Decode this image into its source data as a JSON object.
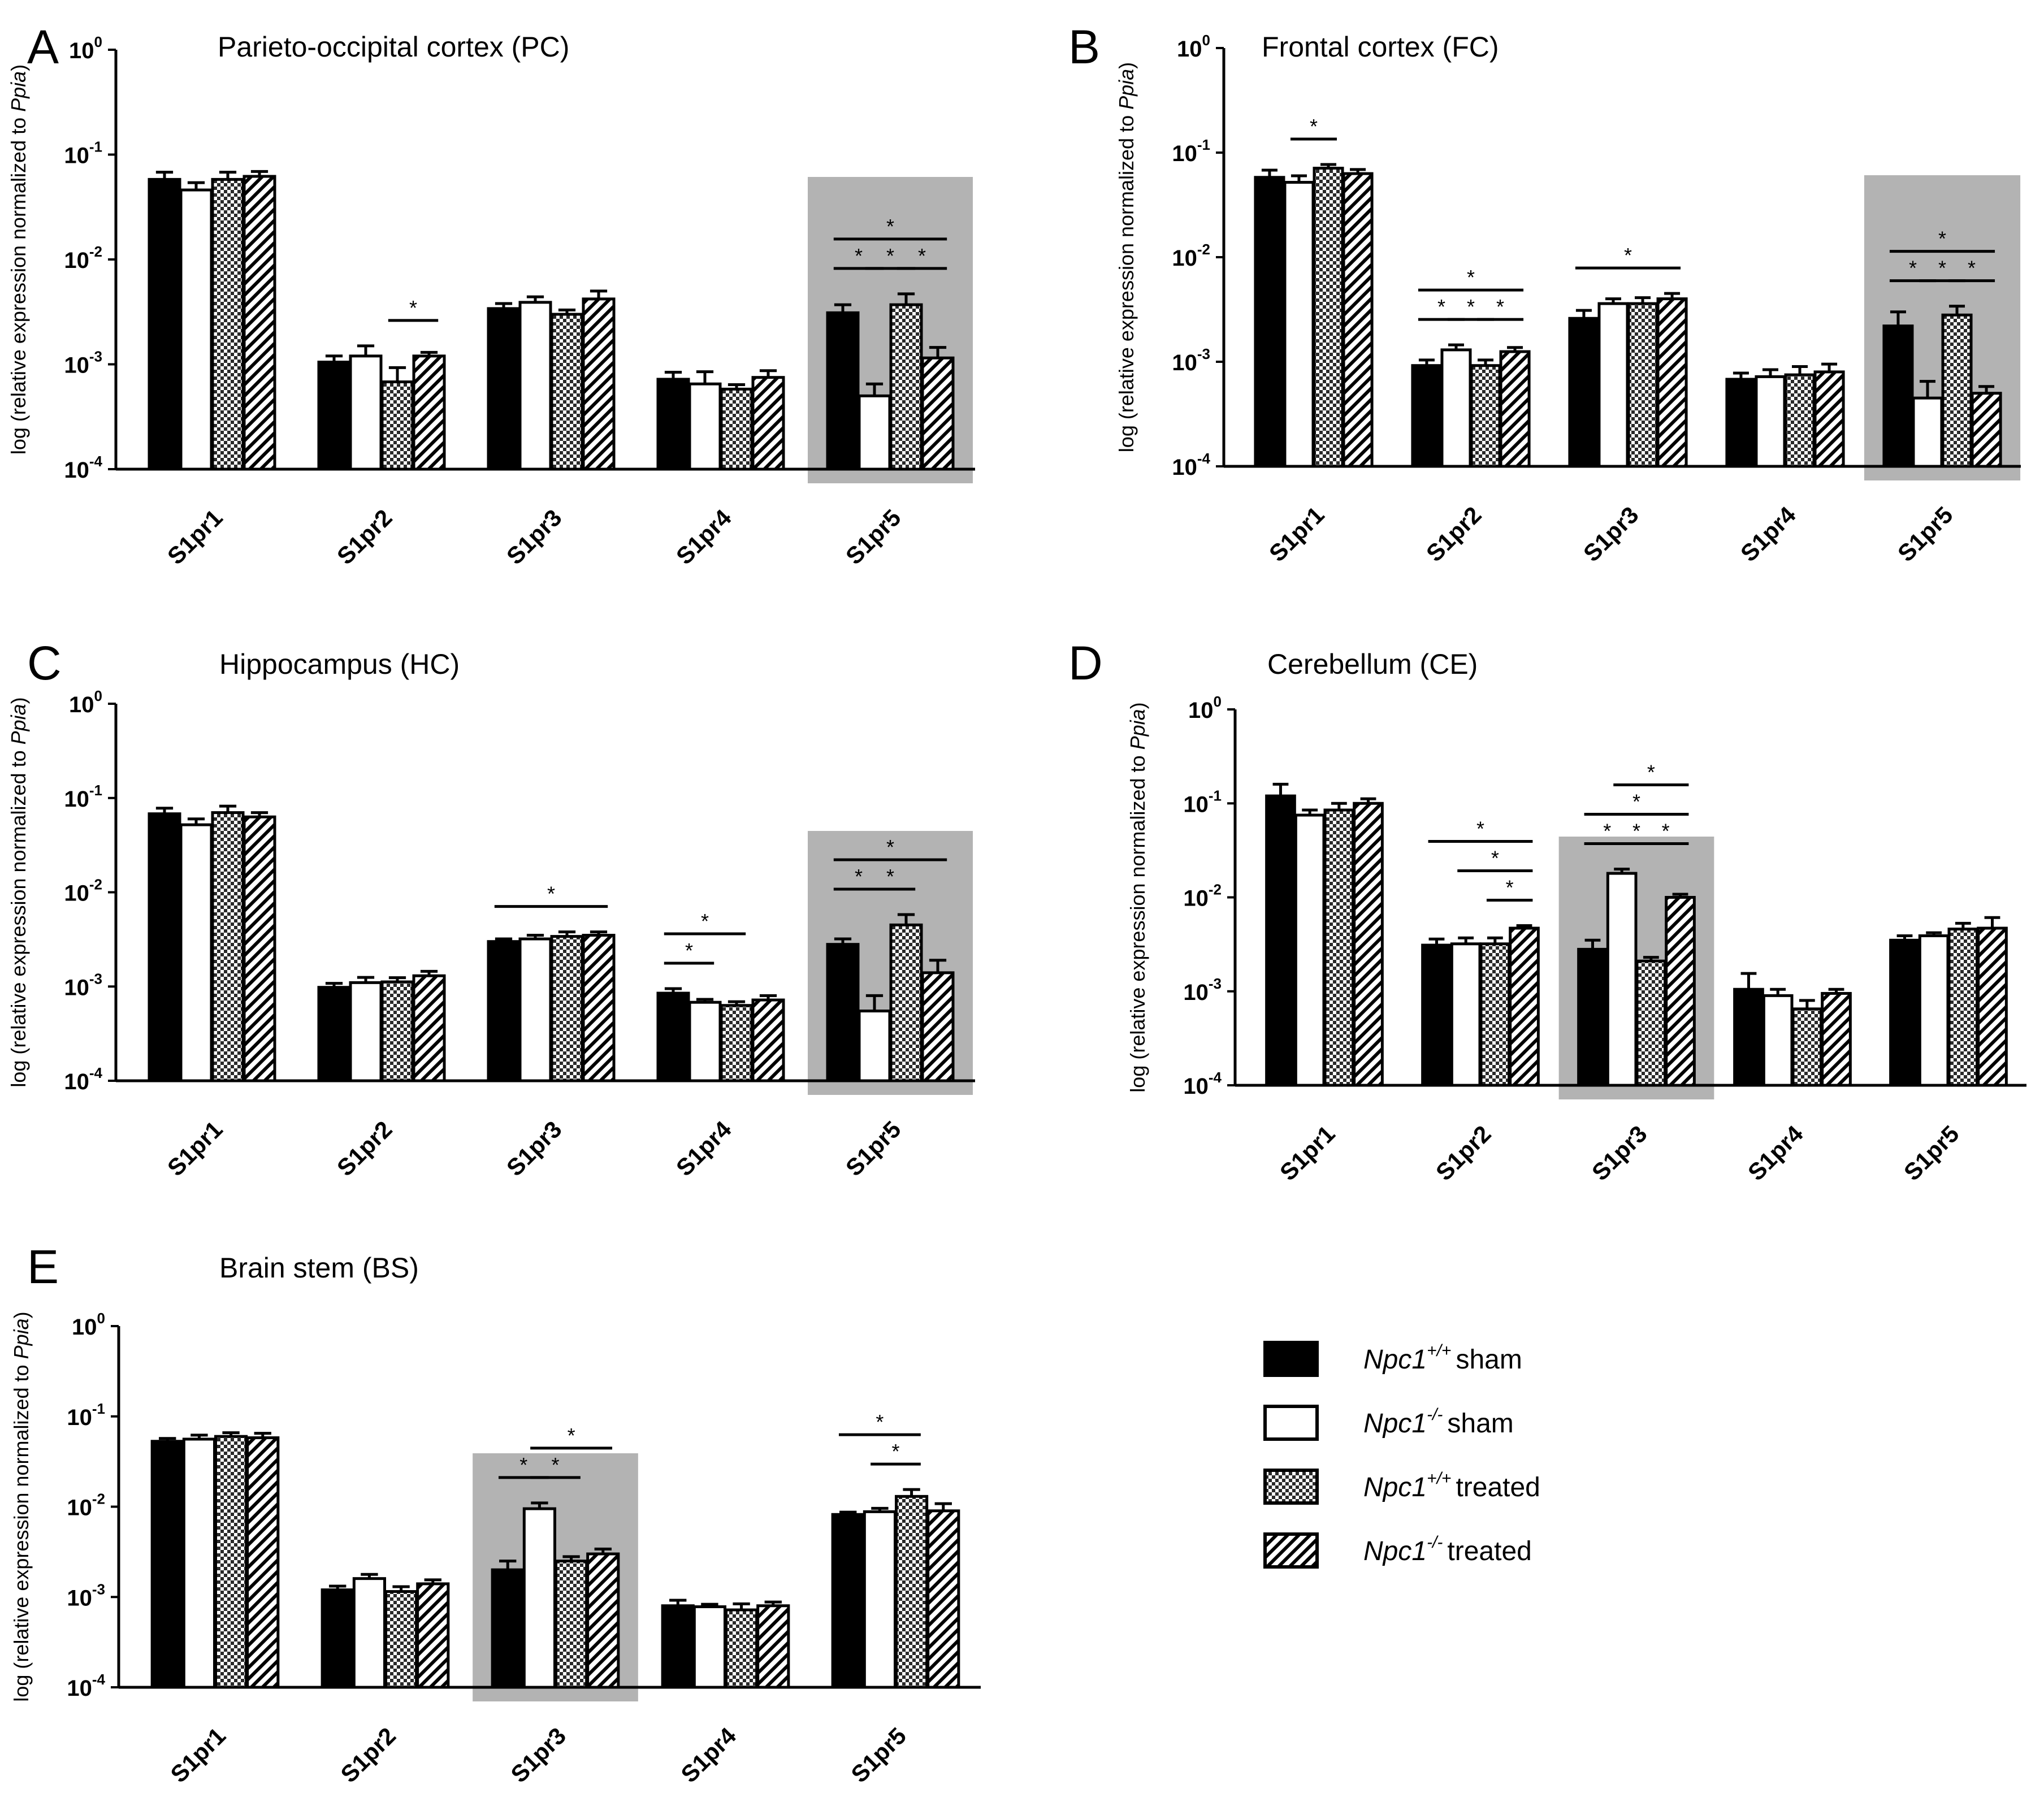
{
  "figure": {
    "legend": {
      "entries": [
        {
          "gene": "Npc1",
          "genotype": "+/+",
          "condition": "sham",
          "pattern": "solid"
        },
        {
          "gene": "Npc1",
          "genotype": "-/-",
          "condition": "sham",
          "pattern": "open"
        },
        {
          "gene": "Npc1",
          "genotype": "+/+",
          "condition": "treated",
          "pattern": "checker"
        },
        {
          "gene": "Npc1",
          "genotype": "-/-",
          "condition": "treated",
          "pattern": "hatch"
        }
      ]
    }
  },
  "chart_data": [
    {
      "panel": "A",
      "type": "bar",
      "title": "Parieto-occipital cortex (PC)",
      "ylabel_prefix": "log (relative expression normalized to ",
      "ylabel_italic": "Ppia",
      "ylabel_suffix": ")",
      "yscale": "log",
      "ylim": [
        0.0001,
        1
      ],
      "yticks": [
        {
          "base": "10",
          "exp": "0"
        },
        {
          "base": "10",
          "exp": "-1"
        },
        {
          "base": "10",
          "exp": "-2"
        },
        {
          "base": "10",
          "exp": "-3"
        },
        {
          "base": "10",
          "exp": "-4"
        }
      ],
      "categories": [
        "S1pr1",
        "S1pr2",
        "S1pr3",
        "S1pr4",
        "S1pr5"
      ],
      "series": [
        {
          "name": "Npc1+/+ sham",
          "values": [
            0.058,
            0.00105,
            0.0034,
            0.00072,
            0.0031
          ],
          "errors": [
            0.01,
            0.00015,
            0.0004,
            0.00012,
            0.0006
          ]
        },
        {
          "name": "Npc1-/- sham",
          "values": [
            0.046,
            0.0012,
            0.0039,
            0.00065,
            0.0005
          ],
          "errors": [
            0.008,
            0.0003,
            0.0005,
            0.0002,
            0.00015
          ]
        },
        {
          "name": "Npc1+/+ treated",
          "values": [
            0.058,
            0.00068,
            0.003,
            0.00058,
            0.0037
          ],
          "errors": [
            0.01,
            0.00025,
            0.0003,
            6e-05,
            0.001
          ]
        },
        {
          "name": "Npc1-/- treated",
          "values": [
            0.062,
            0.0012,
            0.0042,
            0.00075,
            0.00115
          ],
          "errors": [
            0.007,
            0.0001,
            0.0008,
            0.00012,
            0.0003
          ]
        }
      ],
      "highlight": [
        4
      ],
      "significance": [
        {
          "category": 1,
          "from": 2,
          "to": 3,
          "level": 0,
          "label": "*"
        },
        {
          "category": 4,
          "from": 0,
          "to": 1,
          "level": 0,
          "label": "*"
        },
        {
          "category": 4,
          "from": 1,
          "to": 2,
          "level": 0,
          "label": "*"
        },
        {
          "category": 4,
          "from": 2,
          "to": 3,
          "level": 0,
          "label": "*"
        },
        {
          "category": 4,
          "from": 0,
          "to": 3,
          "level": 1,
          "label": "*"
        }
      ]
    },
    {
      "panel": "B",
      "type": "bar",
      "title": "Frontal cortex (FC)",
      "ylabel_prefix": "log (relative expression normalized to ",
      "ylabel_italic": "Ppia",
      "ylabel_suffix": ")",
      "yscale": "log",
      "ylim": [
        0.0001,
        1
      ],
      "yticks": [
        {
          "base": "10",
          "exp": "0"
        },
        {
          "base": "10",
          "exp": "-1"
        },
        {
          "base": "10",
          "exp": "-2"
        },
        {
          "base": "10",
          "exp": "-3"
        },
        {
          "base": "10",
          "exp": "-4"
        }
      ],
      "categories": [
        "S1pr1",
        "S1pr2",
        "S1pr3",
        "S1pr4",
        "S1pr5"
      ],
      "series": [
        {
          "name": "Npc1+/+ sham",
          "values": [
            0.058,
            0.00092,
            0.0026,
            0.00068,
            0.0022
          ],
          "errors": [
            0.01,
            0.00012,
            0.0005,
            0.0001,
            0.0008
          ]
        },
        {
          "name": "Npc1-/- sham",
          "values": [
            0.052,
            0.0013,
            0.0036,
            0.00072,
            0.00045
          ],
          "errors": [
            0.008,
            0.00015,
            0.0004,
            0.00012,
            0.0002
          ]
        },
        {
          "name": "Npc1+/+ treated",
          "values": [
            0.071,
            0.00092,
            0.0036,
            0.00075,
            0.0028
          ],
          "errors": [
            0.006,
            0.00012,
            0.0005,
            0.00015,
            0.0006
          ]
        },
        {
          "name": "Npc1-/- treated",
          "values": [
            0.063,
            0.00125,
            0.004,
            0.0008,
            0.0005
          ],
          "errors": [
            0.006,
            0.00012,
            0.0005,
            0.00015,
            8e-05
          ]
        }
      ],
      "highlight": [
        4
      ],
      "significance": [
        {
          "category": 0,
          "from": 1,
          "to": 2,
          "level": 0,
          "label": "*"
        },
        {
          "category": 1,
          "from": 0,
          "to": 1,
          "level": 0,
          "label": "*"
        },
        {
          "category": 1,
          "from": 1,
          "to": 2,
          "level": 0,
          "label": "*"
        },
        {
          "category": 1,
          "from": 2,
          "to": 3,
          "level": 0,
          "label": "*"
        },
        {
          "category": 1,
          "from": 0,
          "to": 3,
          "level": 1,
          "label": "*"
        },
        {
          "category": 2,
          "from": 0,
          "to": 3,
          "level": 0,
          "label": "*"
        },
        {
          "category": 4,
          "from": 0,
          "to": 1,
          "level": 0,
          "label": "*"
        },
        {
          "category": 4,
          "from": 1,
          "to": 2,
          "level": 0,
          "label": "*"
        },
        {
          "category": 4,
          "from": 2,
          "to": 3,
          "level": 0,
          "label": "*"
        },
        {
          "category": 4,
          "from": 0,
          "to": 3,
          "level": 1,
          "label": "*"
        }
      ]
    },
    {
      "panel": "C",
      "type": "bar",
      "title": "Hippocampus (HC)",
      "ylabel_prefix": "log (relative expression normalized to ",
      "ylabel_italic": "Ppia",
      "ylabel_suffix": ")",
      "yscale": "log",
      "ylim": [
        0.0001,
        1
      ],
      "yticks": [
        {
          "base": "10",
          "exp": "0"
        },
        {
          "base": "10",
          "exp": "-1"
        },
        {
          "base": "10",
          "exp": "-2"
        },
        {
          "base": "10",
          "exp": "-3"
        },
        {
          "base": "10",
          "exp": "-4"
        }
      ],
      "categories": [
        "S1pr1",
        "S1pr2",
        "S1pr3",
        "S1pr4",
        "S1pr5"
      ],
      "series": [
        {
          "name": "Npc1+/+ sham",
          "values": [
            0.068,
            0.00098,
            0.003,
            0.00085,
            0.0028
          ],
          "errors": [
            0.01,
            0.0001,
            0.0002,
            0.0001,
            0.0004
          ]
        },
        {
          "name": "Npc1-/- sham",
          "values": [
            0.052,
            0.0011,
            0.0032,
            0.00068,
            0.00055
          ],
          "errors": [
            0.008,
            0.00015,
            0.0003,
            5e-05,
            0.00025
          ]
        },
        {
          "name": "Npc1+/+ treated",
          "values": [
            0.07,
            0.00112,
            0.0034,
            0.00063,
            0.0045
          ],
          "errors": [
            0.012,
            0.00012,
            0.0004,
            6e-05,
            0.0013
          ]
        },
        {
          "name": "Npc1-/- treated",
          "values": [
            0.063,
            0.0013,
            0.0035,
            0.00072,
            0.0014
          ],
          "errors": [
            0.007,
            0.00015,
            0.0003,
            8e-05,
            0.0005
          ]
        }
      ],
      "highlight": [
        4
      ],
      "significance": [
        {
          "category": 2,
          "from": 0,
          "to": 3,
          "level": 0,
          "label": "*"
        },
        {
          "category": 3,
          "from": 0,
          "to": 1,
          "level": 0,
          "label": "*"
        },
        {
          "category": 3,
          "from": 0,
          "to": 2,
          "level": 1,
          "label": "*"
        },
        {
          "category": 4,
          "from": 0,
          "to": 1,
          "level": 0,
          "label": "*"
        },
        {
          "category": 4,
          "from": 1,
          "to": 2,
          "level": 0,
          "label": "*"
        },
        {
          "category": 4,
          "from": 0,
          "to": 3,
          "level": 1,
          "label": "*"
        }
      ]
    },
    {
      "panel": "D",
      "type": "bar",
      "title": "Cerebellum (CE)",
      "ylabel_prefix": "log (relative expression normalized to ",
      "ylabel_italic": "Ppia",
      "ylabel_suffix": ")",
      "yscale": "log",
      "ylim": [
        0.0001,
        1
      ],
      "yticks": [
        {
          "base": "10",
          "exp": "0"
        },
        {
          "base": "10",
          "exp": "-1"
        },
        {
          "base": "10",
          "exp": "-2"
        },
        {
          "base": "10",
          "exp": "-3"
        },
        {
          "base": "10",
          "exp": "-4"
        }
      ],
      "categories": [
        "S1pr1",
        "S1pr2",
        "S1pr3",
        "S1pr4",
        "S1pr5"
      ],
      "series": [
        {
          "name": "Npc1+/+ sham",
          "values": [
            0.12,
            0.0031,
            0.0028,
            0.00105,
            0.0035
          ],
          "errors": [
            0.04,
            0.0005,
            0.0007,
            0.0005,
            0.0004
          ]
        },
        {
          "name": "Npc1-/- sham",
          "values": [
            0.075,
            0.0032,
            0.018,
            0.0009,
            0.0039
          ],
          "errors": [
            0.01,
            0.0005,
            0.002,
            0.00015,
            0.0003
          ]
        },
        {
          "name": "Npc1+/+ treated",
          "values": [
            0.085,
            0.0032,
            0.0021,
            0.00065,
            0.0046
          ],
          "errors": [
            0.015,
            0.0005,
            0.0002,
            0.00015,
            0.0007
          ]
        },
        {
          "name": "Npc1-/- treated",
          "values": [
            0.1,
            0.0047,
            0.01,
            0.00095,
            0.0047
          ],
          "errors": [
            0.012,
            0.0003,
            0.0008,
            0.0001,
            0.0014
          ]
        }
      ],
      "highlight": [
        2
      ],
      "significance": [
        {
          "category": 1,
          "from": 2,
          "to": 3,
          "level": 0,
          "label": "*"
        },
        {
          "category": 1,
          "from": 1,
          "to": 3,
          "level": 1,
          "label": "*"
        },
        {
          "category": 1,
          "from": 0,
          "to": 3,
          "level": 2,
          "label": "*"
        },
        {
          "category": 2,
          "from": 0,
          "to": 1,
          "level": 0,
          "label": "*"
        },
        {
          "category": 2,
          "from": 1,
          "to": 2,
          "level": 0,
          "label": "*"
        },
        {
          "category": 2,
          "from": 2,
          "to": 3,
          "level": 0,
          "label": "*"
        },
        {
          "category": 2,
          "from": 0,
          "to": 3,
          "level": 1,
          "label": "*"
        },
        {
          "category": 2,
          "from": 1,
          "to": 3,
          "level": 2,
          "label": "*"
        }
      ]
    },
    {
      "panel": "E",
      "type": "bar",
      "title": "Brain stem (BS)",
      "ylabel_prefix": "log (relative expression normalized to ",
      "ylabel_italic": "Ppia",
      "ylabel_suffix": ")",
      "yscale": "log",
      "ylim": [
        0.0001,
        1
      ],
      "yticks": [
        {
          "base": "10",
          "exp": "0"
        },
        {
          "base": "10",
          "exp": "-1"
        },
        {
          "base": "10",
          "exp": "-2"
        },
        {
          "base": "10",
          "exp": "-3"
        },
        {
          "base": "10",
          "exp": "-4"
        }
      ],
      "categories": [
        "S1pr1",
        "S1pr2",
        "S1pr3",
        "S1pr4",
        "S1pr5"
      ],
      "series": [
        {
          "name": "Npc1+/+ sham",
          "values": [
            0.053,
            0.0012,
            0.002,
            0.0008,
            0.0082
          ],
          "errors": [
            0.004,
            0.00012,
            0.0005,
            0.00012,
            0.0005
          ]
        },
        {
          "name": "Npc1-/- sham",
          "values": [
            0.056,
            0.0016,
            0.0095,
            0.00078,
            0.0088
          ],
          "errors": [
            0.006,
            0.00018,
            0.0015,
            5e-05,
            0.0008
          ]
        },
        {
          "name": "Npc1+/+ treated",
          "values": [
            0.06,
            0.00115,
            0.0025,
            0.00072,
            0.013
          ],
          "errors": [
            0.006,
            0.00015,
            0.0003,
            0.00012,
            0.0025
          ]
        },
        {
          "name": "Npc1-/- treated",
          "values": [
            0.058,
            0.0014,
            0.003,
            0.0008,
            0.009
          ],
          "errors": [
            0.007,
            0.00015,
            0.0004,
            8e-05,
            0.0018
          ]
        }
      ],
      "highlight": [
        2
      ],
      "significance": [
        {
          "category": 2,
          "from": 0,
          "to": 1,
          "level": 0,
          "label": "*"
        },
        {
          "category": 2,
          "from": 1,
          "to": 2,
          "level": 0,
          "label": "*"
        },
        {
          "category": 2,
          "from": 1,
          "to": 3,
          "level": 1,
          "label": "*"
        },
        {
          "category": 4,
          "from": 1,
          "to": 2,
          "level": 0,
          "label": "*"
        },
        {
          "category": 4,
          "from": 0,
          "to": 2,
          "level": 1,
          "label": "*"
        }
      ]
    }
  ]
}
